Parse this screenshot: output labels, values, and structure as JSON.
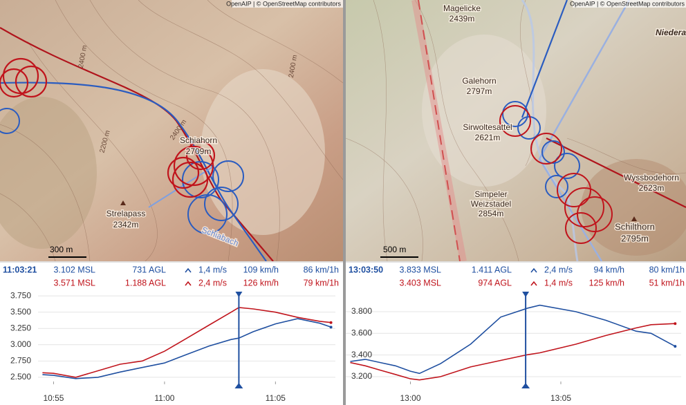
{
  "maps": [
    {
      "attribution": "OpenAIP | © OpenStreetMap contributors",
      "labels": [
        "Schiahorn",
        "2709m",
        "Strelapass",
        "2342m",
        "Schiabach"
      ],
      "contours": [
        "2400 m",
        "2400 m",
        "2200 m",
        "2400 m"
      ],
      "scale": "300 m"
    },
    {
      "attribution": "OpenAIP | © OpenStreetMap contributors",
      "labels": [
        "Magelicke",
        "2439m",
        "Galehorn",
        "2797m",
        "Sirwoltesattel",
        "2621m",
        "Simpeler",
        "Weizstadel",
        "2854m",
        "Wyssbodehorn",
        "2623m",
        "Schilthorn",
        "2795m",
        "Niedera"
      ],
      "scale": "500 m"
    }
  ],
  "stats": [
    {
      "time": "11:03:21",
      "rows": [
        {
          "color": "#1f4fa0",
          "cells": [
            "3.102 MSL",
            "731 AGL",
            "1,4 m/s",
            "109 km/h",
            "86 km/1h"
          ]
        },
        {
          "color": "#c0141c",
          "cells": [
            "3.571 MSL",
            "1.188 AGL",
            "2,4 m/s",
            "126 km/h",
            "79 km/1h"
          ]
        }
      ]
    },
    {
      "time": "13:03:50",
      "rows": [
        {
          "color": "#1f4fa0",
          "cells": [
            "3.833 MSL",
            "1.411 AGL",
            "2,4 m/s",
            "94 km/h",
            "80 km/1h"
          ]
        },
        {
          "color": "#c0141c",
          "cells": [
            "3.403 MSL",
            "974 AGL",
            "1,4 m/s",
            "125 km/h",
            "51 km/1h"
          ]
        }
      ]
    }
  ],
  "chart_data": [
    {
      "type": "line",
      "x": [
        654.5,
        655,
        656,
        657,
        658,
        659,
        660,
        661,
        662,
        663,
        663.35,
        664,
        665,
        666,
        667,
        667.5
      ],
      "series": [
        {
          "color": "#1f4fa0",
          "values": [
            2540,
            2530,
            2480,
            2500,
            2580,
            2650,
            2720,
            2850,
            2980,
            3080,
            3102,
            3200,
            3320,
            3400,
            3330,
            3270
          ]
        },
        {
          "color": "#c0141c",
          "values": [
            2570,
            2560,
            2500,
            2600,
            2700,
            2750,
            2900,
            3100,
            3300,
            3500,
            3571,
            3550,
            3500,
            3420,
            3360,
            3340
          ]
        }
      ],
      "cursor": 663.35,
      "xlim": [
        654.3,
        667.7
      ],
      "xticks": [
        {
          "value": 655,
          "label": "10:55"
        },
        {
          "value": 660,
          "label": "11:00"
        },
        {
          "value": 665,
          "label": "11:05"
        }
      ],
      "ylim": [
        2435,
        3815
      ],
      "yticks": [
        {
          "value": 2500,
          "label": "2.500"
        },
        {
          "value": 2750,
          "label": "2.750"
        },
        {
          "value": 3000,
          "label": "3.000"
        },
        {
          "value": 3250,
          "label": "3.250"
        },
        {
          "value": 3500,
          "label": "3.500"
        },
        {
          "value": 3750,
          "label": "3.750"
        }
      ]
    },
    {
      "type": "line",
      "x": [
        778,
        778.5,
        779,
        779.5,
        780,
        780.3,
        781,
        782,
        783,
        783.9,
        784.3,
        785.5,
        786.5,
        787.5,
        788,
        788.8
      ],
      "series": [
        {
          "color": "#1f4fa0",
          "values": [
            3340,
            3360,
            3330,
            3300,
            3250,
            3230,
            3320,
            3500,
            3750,
            3833,
            3860,
            3800,
            3720,
            3620,
            3600,
            3480
          ]
        },
        {
          "color": "#c0141c",
          "values": [
            3330,
            3300,
            3260,
            3220,
            3180,
            3170,
            3200,
            3290,
            3350,
            3403,
            3420,
            3500,
            3580,
            3650,
            3680,
            3690
          ]
        }
      ],
      "cursor": 783.83,
      "xlim": [
        777.85,
        789
      ],
      "xticks": [
        {
          "value": 780,
          "label": "13:00"
        },
        {
          "value": 785,
          "label": "13:05"
        }
      ],
      "ylim": [
        3155,
        3985
      ],
      "yticks": [
        {
          "value": 3200,
          "label": "3.200"
        },
        {
          "value": 3400,
          "label": "3.400"
        },
        {
          "value": 3600,
          "label": "3.600"
        },
        {
          "value": 3800,
          "label": "3.800"
        }
      ]
    }
  ]
}
